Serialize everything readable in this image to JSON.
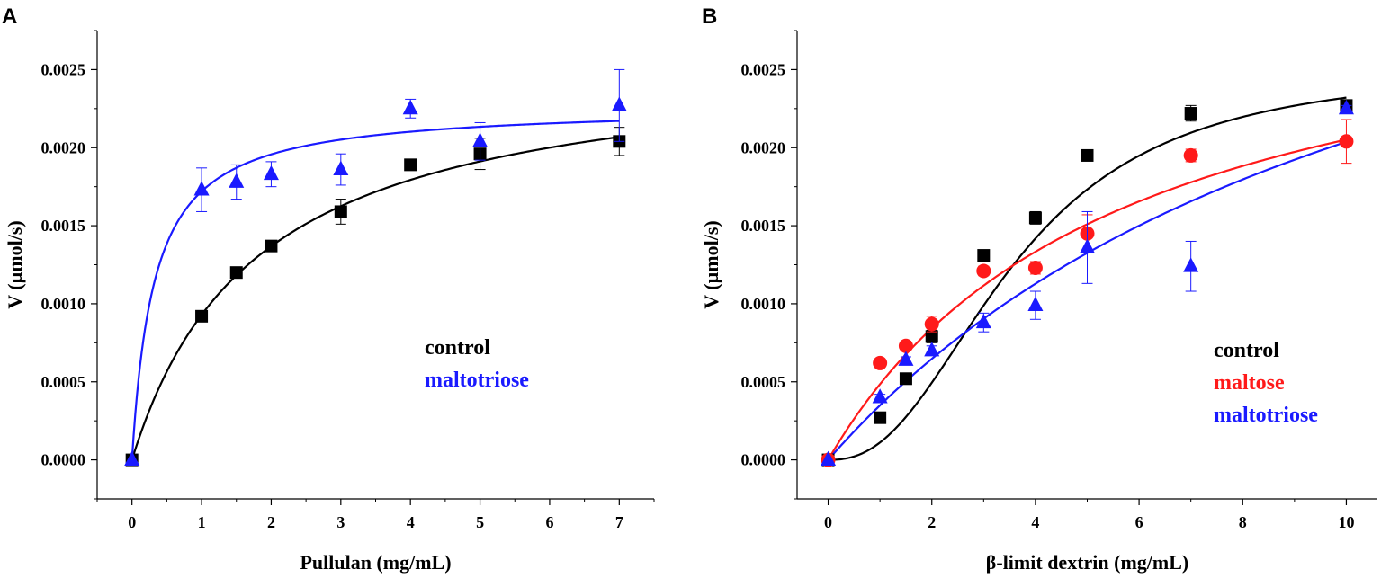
{
  "chart_data": [
    {
      "panel_label": "A",
      "type": "scatter",
      "xlabel": "Pullulan (mg/mL)",
      "ylabel": "V (µmol/s)",
      "xlim": [
        -0.5,
        7.5
      ],
      "ylim": [
        -0.00025,
        0.00275
      ],
      "xticks": [
        0,
        1,
        2,
        3,
        4,
        5,
        6,
        7
      ],
      "xtick_labels": [
        "0",
        "1",
        "2",
        "3",
        "4",
        "5",
        "6",
        "7"
      ],
      "yticks": [
        0.0,
        0.0005,
        0.001,
        0.0015,
        0.002,
        0.0025
      ],
      "ytick_labels": [
        "0.0000",
        "0.0005",
        "0.0010",
        "0.0015",
        "0.0020",
        "0.0025"
      ],
      "legend_position": "center-right",
      "series": [
        {
          "name": "control",
          "color": "#000000",
          "marker": "square",
          "x": [
            0,
            1,
            1.5,
            2,
            3,
            4,
            5,
            7
          ],
          "y": [
            0.0,
            0.00092,
            0.0012,
            0.00137,
            0.00159,
            0.00189,
            0.00196,
            0.00204
          ],
          "err": [
            0,
            2e-05,
            2e-05,
            3e-05,
            8e-05,
            2e-05,
            0.0001,
            9e-05
          ],
          "fit": {
            "model": "hill",
            "vmax": 0.0026,
            "k": 1.8,
            "n": 1.0,
            "xmax": 7
          }
        },
        {
          "name": "maltotriose",
          "color": "#1a1aff",
          "marker": "triangle",
          "x": [
            0,
            1,
            1.5,
            2,
            3,
            4,
            5,
            7
          ],
          "y": [
            0.0,
            0.00173,
            0.00178,
            0.00183,
            0.00186,
            0.00225,
            0.00204,
            0.00227
          ],
          "err": [
            0,
            0.00014,
            0.00011,
            8e-05,
            0.0001,
            6e-05,
            0.00012,
            0.00023
          ],
          "fit": {
            "model": "hill",
            "vmax": 0.00227,
            "k": 0.32,
            "n": 1.0,
            "xmax": 7
          }
        }
      ]
    },
    {
      "panel_label": "B",
      "type": "scatter",
      "xlabel": "β-limit dextrin (mg/mL)",
      "ylabel": "V (µmol/s)",
      "xlim": [
        -0.6,
        10.6
      ],
      "ylim": [
        -0.00025,
        0.00275
      ],
      "xticks": [
        0,
        2,
        4,
        6,
        8,
        10
      ],
      "xtick_labels": [
        "0",
        "2",
        "4",
        "6",
        "8",
        "10"
      ],
      "yticks": [
        0.0,
        0.0005,
        0.001,
        0.0015,
        0.002,
        0.0025
      ],
      "ytick_labels": [
        "0.0000",
        "0.0005",
        "0.0010",
        "0.0015",
        "0.0020",
        "0.0025"
      ],
      "legend_position": "center-right",
      "series": [
        {
          "name": "control",
          "color": "#000000",
          "marker": "square",
          "x": [
            0,
            1,
            1.5,
            2,
            3,
            4,
            5,
            7,
            10
          ],
          "y": [
            0.0,
            0.00027,
            0.00052,
            0.00079,
            0.00131,
            0.00155,
            0.00195,
            0.00222,
            0.00227
          ],
          "err": [
            0,
            2e-05,
            2e-05,
            4e-05,
            3e-05,
            4e-05,
            2e-05,
            5e-05,
            3e-05
          ],
          "fit": {
            "model": "hill",
            "vmax": 0.00252,
            "k": 3.6,
            "n": 2.4,
            "xmax": 10
          }
        },
        {
          "name": "maltose",
          "color": "#ff1a1a",
          "marker": "circle",
          "x": [
            0,
            1,
            1.5,
            2,
            3,
            4,
            5,
            7,
            10
          ],
          "y": [
            0.0,
            0.00062,
            0.00073,
            0.00087,
            0.00121,
            0.00123,
            0.00145,
            0.00195,
            0.00204
          ],
          "err": [
            0,
            2e-05,
            3e-05,
            5e-05,
            3e-05,
            4e-05,
            0.00012,
            4e-05,
            0.00014
          ],
          "fit": {
            "model": "hill",
            "vmax": 0.0032,
            "k": 5.6,
            "n": 1.0,
            "xmax": 10
          }
        },
        {
          "name": "maltotriose",
          "color": "#1a1aff",
          "marker": "triangle",
          "x": [
            0,
            1,
            1.5,
            2,
            3,
            4,
            5,
            7,
            10
          ],
          "y": [
            0.0,
            0.0004,
            0.00064,
            0.0007,
            0.00088,
            0.00099,
            0.00136,
            0.00124,
            0.00225
          ],
          "err": [
            0,
            2e-05,
            2e-05,
            3e-05,
            6e-05,
            9e-05,
            0.00023,
            0.00016,
            2e-05
          ],
          "fit": {
            "model": "hill",
            "vmax": 0.0044,
            "k": 11.6,
            "n": 1.0,
            "xmax": 10
          }
        }
      ]
    }
  ]
}
